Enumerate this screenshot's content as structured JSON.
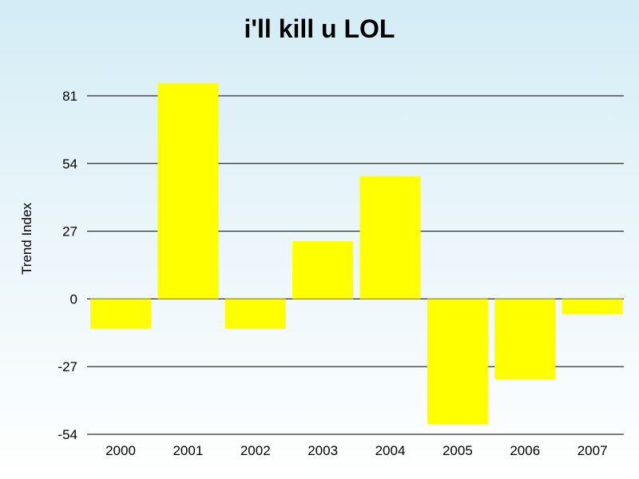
{
  "chart_data": {
    "type": "bar",
    "title": "i'll kill u LOL",
    "xlabel": "",
    "ylabel": "Trend Index",
    "categories": [
      "2000",
      "2001",
      "2002",
      "2003",
      "2004",
      "2005",
      "2006",
      "2007"
    ],
    "values": [
      -12,
      86,
      -12,
      23,
      49,
      -50,
      -32,
      -6
    ],
    "ylim": [
      -54,
      81
    ],
    "yticks": [
      81,
      54,
      27,
      0,
      -27,
      -54
    ],
    "grid": true,
    "legend": "none",
    "bar_color": "#ffff00"
  }
}
